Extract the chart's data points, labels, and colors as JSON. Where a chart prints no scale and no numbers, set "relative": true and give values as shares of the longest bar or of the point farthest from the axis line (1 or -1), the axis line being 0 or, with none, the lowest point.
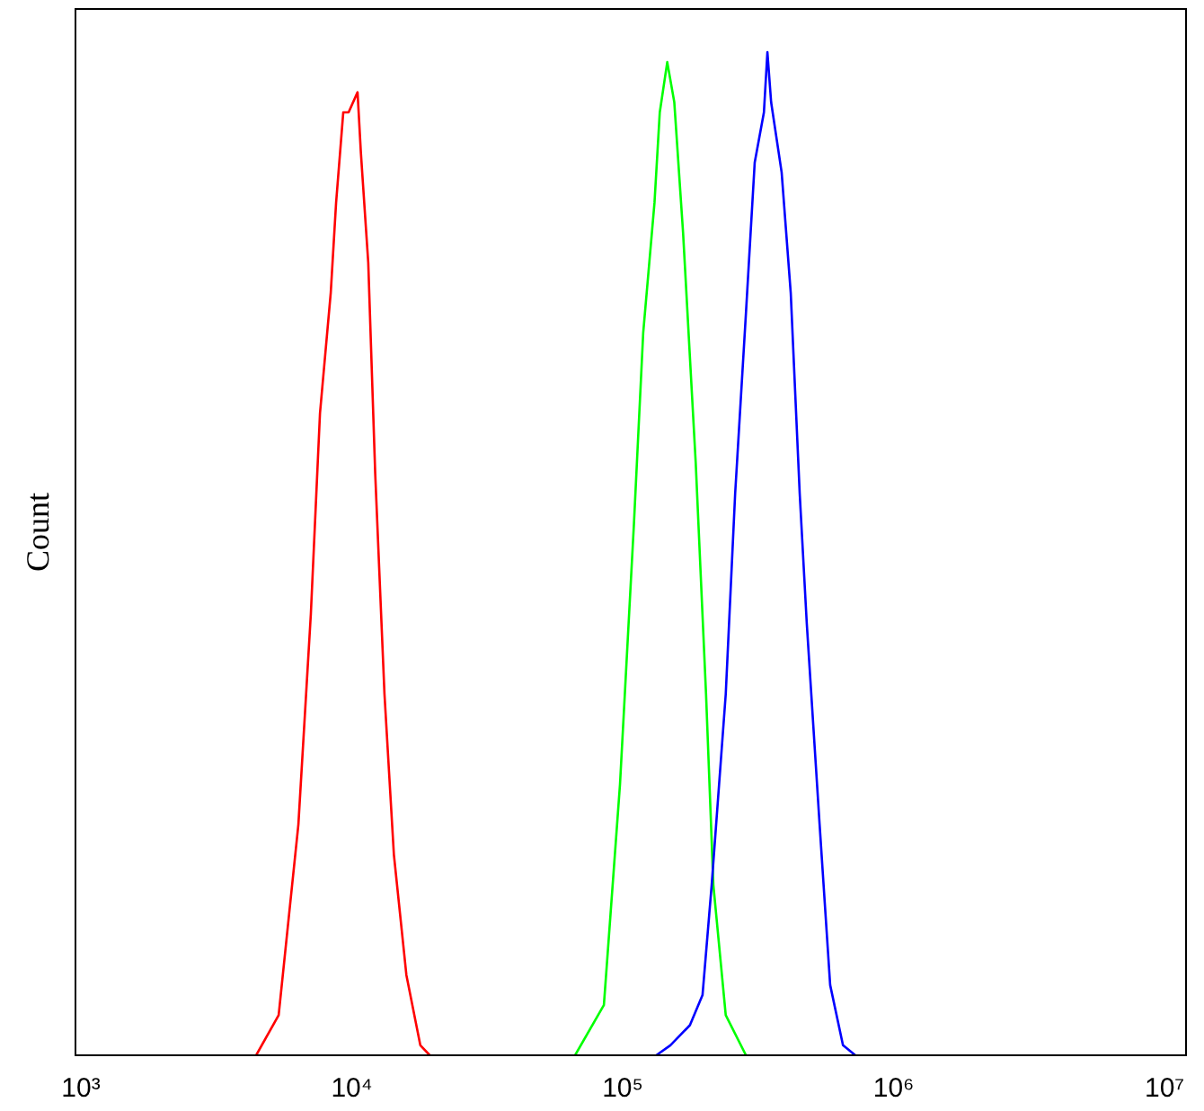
{
  "chart_data": {
    "type": "line",
    "ylabel": "Count",
    "relative": true,
    "log": "x",
    "grid": false,
    "xlim": [
      955,
      12000000
    ],
    "xticks": [
      {
        "value": 1000,
        "label": "10³"
      },
      {
        "value": 10000,
        "label": "10⁴"
      },
      {
        "value": 100000,
        "label": "10⁵"
      },
      {
        "value": 1000000,
        "label": "10⁶"
      },
      {
        "value": 10000000,
        "label": "10⁷"
      }
    ],
    "series": [
      {
        "color": "#ff0000",
        "x": [
          4436,
          5370,
          6350,
          7060,
          7630,
          8360,
          8750,
          9300,
          9730,
          10500,
          10800,
          11500,
          12200,
          13200,
          14300,
          15900,
          17900,
          19400
        ],
        "values": [
          0,
          0.04,
          0.23,
          0.44,
          0.64,
          0.76,
          0.85,
          0.94,
          0.94,
          0.96,
          0.9,
          0.79,
          0.58,
          0.36,
          0.2,
          0.08,
          0.01,
          0
        ]
      },
      {
        "color": "#00ff00",
        "x": [
          66700,
          85200,
          97700,
          110000,
          119000,
          131000,
          137000,
          146000,
          155000,
          167000,
          186000,
          203000,
          216000,
          240000,
          285000
        ],
        "values": [
          0,
          0.05,
          0.27,
          0.53,
          0.72,
          0.85,
          0.94,
          0.99,
          0.95,
          0.82,
          0.59,
          0.36,
          0.17,
          0.04,
          0
        ]
      },
      {
        "color": "#0000ff",
        "x": [
          133000,
          150000,
          177000,
          197000,
          213000,
          240000,
          260000,
          285000,
          307000,
          332000,
          342000,
          353000,
          386000,
          417000,
          450000,
          478000,
          533000,
          583000,
          650000,
          722000
        ],
        "values": [
          0,
          0.01,
          0.03,
          0.06,
          0.17,
          0.36,
          0.56,
          0.74,
          0.89,
          0.94,
          1,
          0.95,
          0.88,
          0.76,
          0.56,
          0.43,
          0.23,
          0.07,
          0.01,
          0
        ]
      }
    ]
  }
}
